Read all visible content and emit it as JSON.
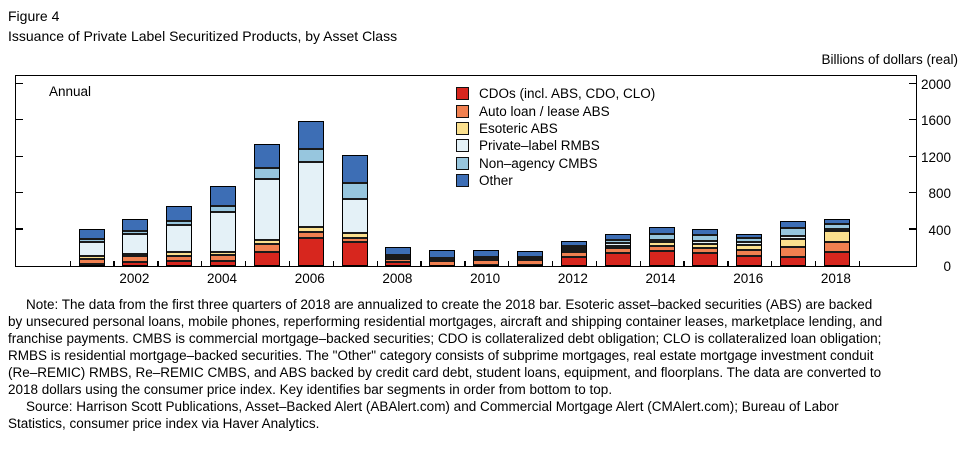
{
  "figure": {
    "label": "Figure 4",
    "title": "Issuance of Private Label Securitized Products, by Asset Class",
    "units_label": "Billions of dollars (real)",
    "frequency_label": "Annual",
    "note_lines": [
      "Note: The data from the first three quarters of 2018 are annualized to create the 2018 bar. Esoteric asset–backed securities (ABS) are backed",
      "by unsecured personal loans, mobile phones, reperforming residential mortgages, aircraft and shipping container leases, marketplace lending, and",
      "franchise payments. CMBS is commercial mortgage–backed securities; CDO is collateralized debt obligation; CLO is collateralized loan obligation;",
      "RMBS is residential mortgage–backed securities. The \"Other\" category consists of subprime mortgages, real estate mortgage investment conduit",
      "(Re–REMIC) RMBS, Re–REMIC CMBS, and ABS backed by credit card debt, student loans, equipment, and floorplans. The data are converted to",
      "2018 dollars using the consumer price index. Key identifies bar segments in order from bottom to top."
    ],
    "source_lines": [
      "Source: Harrison Scott Publications, Asset–Backed Alert (ABAlert.com) and Commercial Mortgage Alert (CMAlert.com); Bureau of Labor",
      "Statistics, consumer price index via Haver Analytics."
    ]
  },
  "chart_data": {
    "type": "bar",
    "stacked": true,
    "title": "Issuance of Private Label Securitized Products, by Asset Class",
    "xlabel": "",
    "ylabel": "Billions of dollars (real)",
    "ylim": [
      0,
      2000
    ],
    "yticks": [
      0,
      400,
      800,
      1200,
      1600,
      2000
    ],
    "grid": false,
    "legend_position": "upper center inside",
    "categories": [
      2001,
      2002,
      2003,
      2004,
      2005,
      2006,
      2007,
      2008,
      2009,
      2010,
      2011,
      2012,
      2013,
      2014,
      2015,
      2016,
      2017,
      2018
    ],
    "xtick_labels": [
      2002,
      2004,
      2006,
      2008,
      2010,
      2012,
      2014,
      2016,
      2018
    ],
    "series": [
      {
        "name": "CDOs (incl. ABS, CDO, CLO)",
        "color": "#d7261e",
        "values": [
          25,
          45,
          55,
          60,
          150,
          305,
          260,
          45,
          5,
          10,
          15,
          95,
          145,
          160,
          140,
          110,
          95,
          150
        ]
      },
      {
        "name": "Auto loan / lease ABS",
        "color": "#f08050",
        "values": [
          55,
          65,
          60,
          60,
          90,
          65,
          45,
          30,
          55,
          55,
          50,
          55,
          55,
          60,
          60,
          70,
          110,
          110
        ]
      },
      {
        "name": "Esoteric ABS",
        "color": "#fbe08e",
        "values": [
          25,
          20,
          40,
          30,
          45,
          55,
          60,
          15,
          15,
          15,
          15,
          25,
          25,
          40,
          45,
          55,
          95,
          125
        ]
      },
      {
        "name": "Private–label RMBS",
        "color": "#e4f1f7",
        "values": [
          155,
          220,
          300,
          440,
          670,
          715,
          375,
          20,
          10,
          10,
          5,
          20,
          25,
          25,
          25,
          25,
          35,
          25
        ]
      },
      {
        "name": "Non–agency CMBS",
        "color": "#97c6de",
        "values": [
          35,
          35,
          40,
          70,
          125,
          145,
          175,
          15,
          5,
          10,
          15,
          25,
          40,
          70,
          70,
          45,
          85,
          50
        ]
      },
      {
        "name": "Other",
        "color": "#3d6eb5",
        "values": [
          115,
          130,
          165,
          220,
          260,
          305,
          300,
          80,
          85,
          75,
          65,
          55,
          60,
          70,
          65,
          45,
          80,
          55
        ]
      }
    ],
    "totals": [
      410,
      515,
      660,
      880,
      1340,
      1590,
      1215,
      205,
      175,
      175,
      165,
      275,
      350,
      425,
      405,
      350,
      500,
      515
    ]
  }
}
